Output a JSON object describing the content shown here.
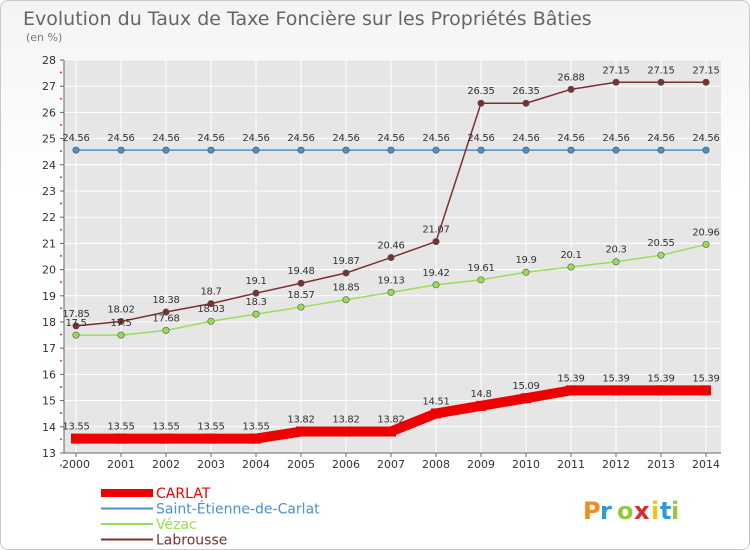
{
  "chart_data": {
    "type": "line",
    "title": "Evolution du Taux de Taxe Foncière sur les Propriétés Bâties",
    "subtitle": "(en %)",
    "xlabel": "",
    "ylabel": "",
    "ylim": [
      13,
      28
    ],
    "y_ticks": [
      "13",
      "14",
      "15",
      "16",
      "17",
      "18",
      "19",
      "20",
      "21",
      "22",
      "23",
      "24",
      "25",
      "26",
      "27",
      "28"
    ],
    "categories": [
      "2000",
      "2001",
      "2002",
      "2003",
      "2004",
      "2005",
      "2006",
      "2007",
      "2008",
      "2009",
      "2010",
      "2011",
      "2012",
      "2013",
      "2014"
    ],
    "grid": "horizontal and vertical, white",
    "legend_position": "bottom-left",
    "series": [
      {
        "name": "CARLAT",
        "color": "#ee0000",
        "values": [
          13.55,
          13.55,
          13.55,
          13.55,
          13.55,
          13.82,
          13.82,
          13.82,
          14.51,
          14.8,
          15.09,
          15.39,
          15.39,
          15.39,
          15.39
        ],
        "labels": [
          "13.55",
          "13.55",
          "13.55",
          "13.55",
          "13.55",
          "13.82",
          "13.82",
          "13.82",
          "14.51",
          "14.8",
          "15.09",
          "15.39",
          "15.39",
          "15.39",
          "15.39"
        ]
      },
      {
        "name": "Saint-Étienne-de-Carlat",
        "color": "#4f90c8",
        "values": [
          24.56,
          24.56,
          24.56,
          24.56,
          24.56,
          24.56,
          24.56,
          24.56,
          24.56,
          24.56,
          24.56,
          24.56,
          24.56,
          24.56,
          24.56
        ],
        "labels": [
          "24.56",
          "24.56",
          "24.56",
          "24.56",
          "24.56",
          "24.56",
          "24.56",
          "24.56",
          "24.56",
          "24.56",
          "24.56",
          "24.56",
          "24.56",
          "24.56",
          "24.56"
        ]
      },
      {
        "name": "Vézac",
        "color": "#99dd55",
        "values": [
          17.5,
          17.5,
          17.68,
          18.03,
          18.3,
          18.57,
          18.85,
          19.13,
          19.42,
          19.61,
          19.9,
          20.1,
          20.3,
          20.55,
          20.96
        ],
        "labels": [
          "17.5",
          "17.5",
          "17.68",
          "18.03",
          "18.3",
          "18.57",
          "18.85",
          "19.13",
          "19.42",
          "19.61",
          "19.9",
          "20.1",
          "20.3",
          "20.55",
          "20.96"
        ]
      },
      {
        "name": "Labrousse",
        "color": "#7a3030",
        "values": [
          17.85,
          18.02,
          18.38,
          18.7,
          19.1,
          19.48,
          19.87,
          20.46,
          21.07,
          26.35,
          26.35,
          26.88,
          27.15,
          27.15,
          27.15
        ],
        "labels": [
          "17.85",
          "18.02",
          "18.38",
          "18.7",
          "19.1",
          "19.48",
          "19.87",
          "20.46",
          "21.07",
          "26.35",
          "26.35",
          "26.88",
          "27.15",
          "27.15",
          "27.15"
        ]
      }
    ]
  },
  "logo_text": "Proxiti"
}
